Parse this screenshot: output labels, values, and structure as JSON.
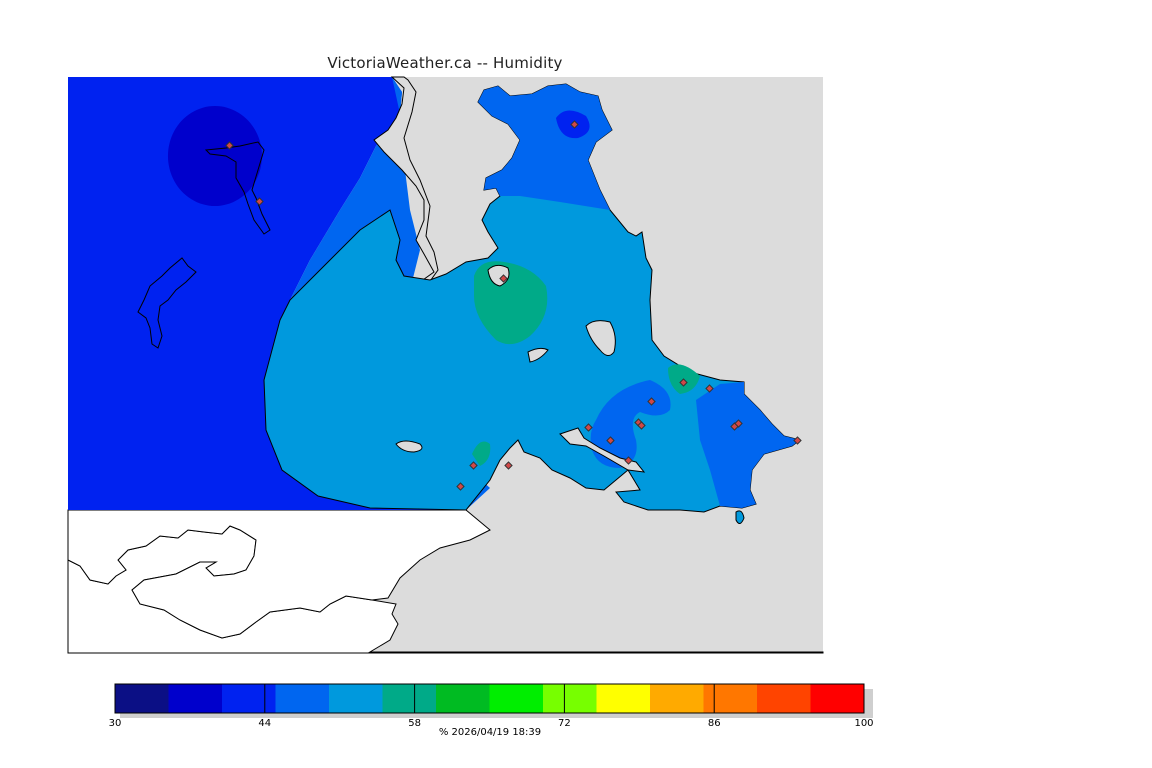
{
  "title": "VictoriaWeather.ca -- Humidity",
  "colors": {
    "land": "#dcdcdc",
    "water": "#ffffff",
    "coast": "#000000",
    "station": "#d04848"
  },
  "legend": {
    "min": 30,
    "max": 100,
    "labels": [
      "30",
      "44",
      "58",
      "72",
      "86",
      "100"
    ],
    "caption": "%  2026/04/19 18:39",
    "bins": [
      {
        "from": 30,
        "to": 35,
        "color": "#0b0f85"
      },
      {
        "from": 35,
        "to": 40,
        "color": "#0000cc"
      },
      {
        "from": 40,
        "to": 45,
        "color": "#0022f0"
      },
      {
        "from": 45,
        "to": 50,
        "color": "#0066f0"
      },
      {
        "from": 50,
        "to": 55,
        "color": "#0099dd"
      },
      {
        "from": 55,
        "to": 60,
        "color": "#00aa88"
      },
      {
        "from": 60,
        "to": 65,
        "color": "#00bb22"
      },
      {
        "from": 65,
        "to": 70,
        "color": "#00ee00"
      },
      {
        "from": 70,
        "to": 75,
        "color": "#77ff00"
      },
      {
        "from": 75,
        "to": 80,
        "color": "#ffff00"
      },
      {
        "from": 80,
        "to": 85,
        "color": "#ffaa00"
      },
      {
        "from": 85,
        "to": 90,
        "color": "#ff7700"
      },
      {
        "from": 90,
        "to": 95,
        "color": "#ff4400"
      },
      {
        "from": 95,
        "to": 100,
        "color": "#ff0000"
      }
    ]
  }
}
